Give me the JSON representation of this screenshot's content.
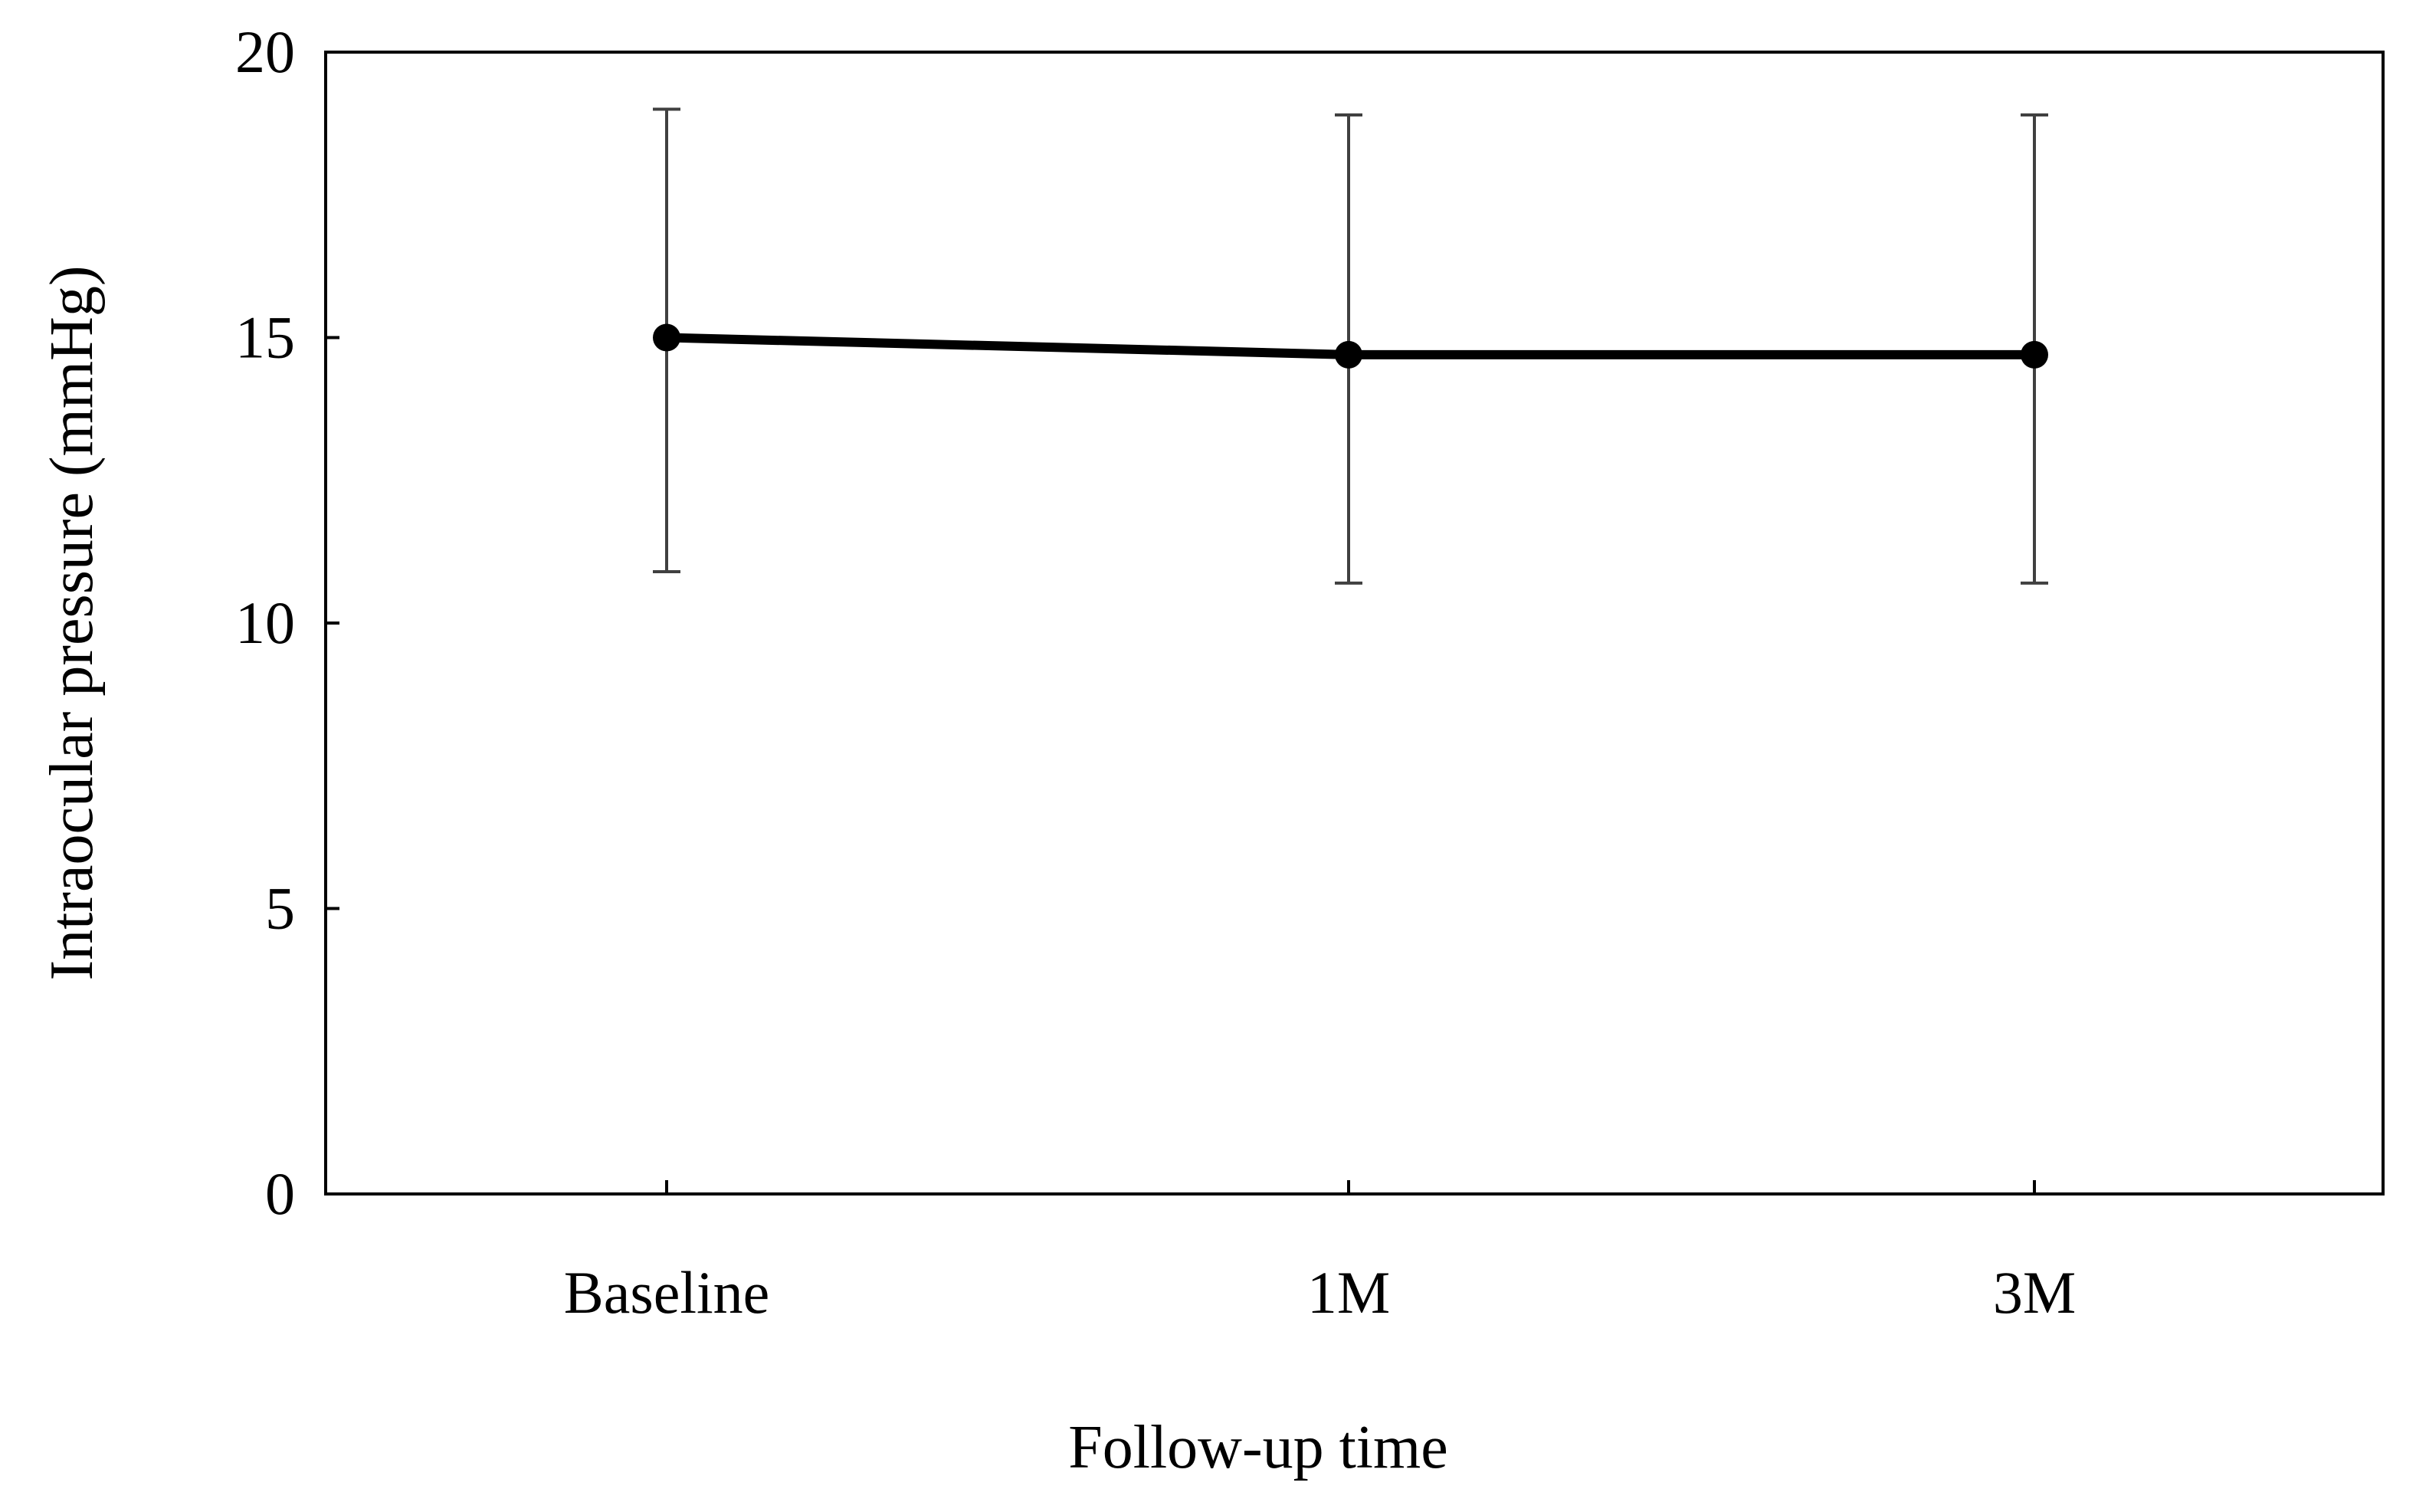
{
  "chart_data": {
    "type": "line",
    "title": "",
    "xlabel": "Follow-up  time",
    "ylabel": "Intraocular  pressure  (mmHg)",
    "categories": [
      "Baseline",
      "1M",
      "3M"
    ],
    "series": [
      {
        "values": [
          15.0,
          14.7,
          14.7
        ],
        "error_upper": [
          19.0,
          18.9,
          18.9
        ],
        "error_lower": [
          10.9,
          10.7,
          10.7
        ]
      }
    ],
    "ylim": [
      0,
      20
    ],
    "yticks": [
      "0",
      "5",
      "10",
      "15",
      "20"
    ],
    "grid": false,
    "legend": "none",
    "colors": {
      "line": "#000000",
      "marker": "#000000",
      "error_bar": "#404040",
      "axis": "#000000"
    }
  }
}
